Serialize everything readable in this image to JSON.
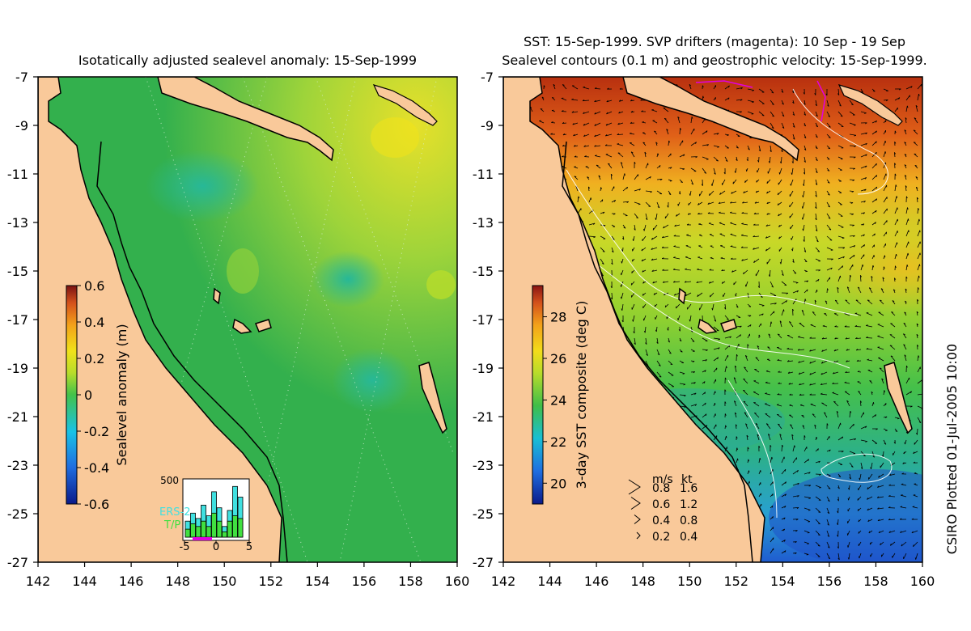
{
  "colors": {
    "land": "#f9c99a",
    "ssh_base": "#33b04d",
    "coast": "#000000",
    "vector": "#000000",
    "contour": "#ffffff",
    "drifter": "#e000e0"
  },
  "left_map": {
    "title": "Isotatically adjusted sealevel anomaly: 15-Sep-1999",
    "x_ticks": [
      "142",
      "144",
      "146",
      "148",
      "150",
      "152",
      "154",
      "156",
      "158",
      "160"
    ],
    "y_ticks": [
      "-7",
      "-9",
      "-11",
      "-13",
      "-15",
      "-17",
      "-19",
      "-21",
      "-23",
      "-25",
      "-27"
    ],
    "colorbar": {
      "label": "Sealevel anomaly (m)",
      "ticks": [
        "0.6",
        "0.4",
        "0.2",
        "0",
        "-0.2",
        "-0.4",
        "-0.6"
      ],
      "range": [
        -0.6,
        0.6
      ]
    },
    "histogram": {
      "y_max_label": "500",
      "x_ticks": [
        "-5",
        "0",
        "5"
      ],
      "legend": [
        "ERS-2",
        "T/P"
      ],
      "legend_colors": [
        "#40e0e0",
        "#40e040"
      ],
      "ers2_values": [
        0.3,
        0.45,
        0.35,
        0.6,
        0.4,
        0.85,
        0.55,
        0.2,
        0.5,
        0.95,
        0.75
      ],
      "tp_values": [
        0.15,
        0.25,
        0.2,
        0.3,
        0.2,
        0.45,
        0.3,
        0.1,
        0.3,
        0.4,
        0.35
      ]
    }
  },
  "right_map": {
    "title_line1": "SST: 15-Sep-1999. SVP drifters (magenta): 10 Sep - 19 Sep",
    "title_line2": "Sealevel contours (0.1 m) and geostrophic velocity: 15-Sep-1999.",
    "x_ticks": [
      "142",
      "144",
      "146",
      "148",
      "150",
      "152",
      "154",
      "156",
      "158",
      "160"
    ],
    "y_ticks": [
      "-7",
      "-9",
      "-11",
      "-13",
      "-15",
      "-17",
      "-19",
      "-21",
      "-23",
      "-25",
      "-27"
    ],
    "colorbar": {
      "label": "3-day SST composite (deg C)",
      "ticks": [
        "28",
        "26",
        "24",
        "22",
        "20"
      ],
      "range": [
        19,
        29.5
      ]
    },
    "velocity_legend": {
      "header_ms": "m/s",
      "header_kt": "kt",
      "rows": [
        {
          "ms": "0.8",
          "kt": "1.6"
        },
        {
          "ms": "0.6",
          "kt": "1.2"
        },
        {
          "ms": "0.4",
          "kt": "0.8"
        },
        {
          "ms": "0.2",
          "kt": "0.4"
        }
      ]
    }
  },
  "side_caption": "CSIRO Plotted 01-Jul-2005 10:00"
}
